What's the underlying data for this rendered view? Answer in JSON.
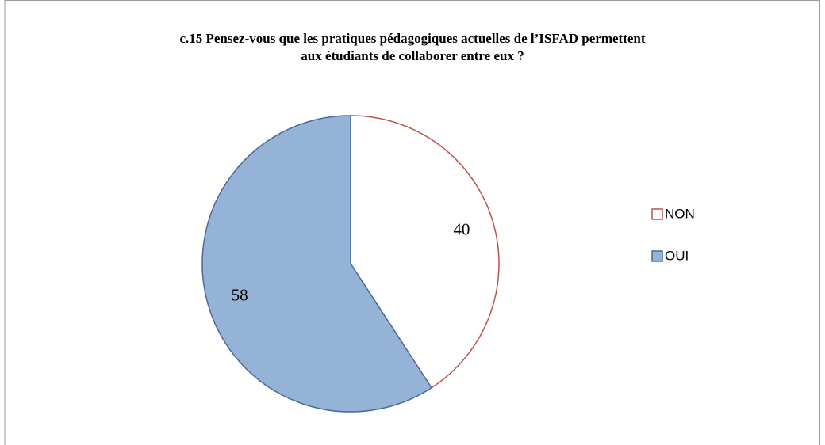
{
  "chart_data": {
    "type": "pie",
    "title": "c.15 Pensez-vous que les pratiques pédagogiques actuelles de l’ISFAD permettent aux étudiants de collaborer entre eux ?",
    "categories": [
      "NON",
      "OUI"
    ],
    "values": [
      40,
      58
    ],
    "colors": [
      "#ffffff",
      "#95b3d7"
    ],
    "edge_colors": [
      "#c0504d",
      "#4a6a99"
    ],
    "legend": "right"
  }
}
